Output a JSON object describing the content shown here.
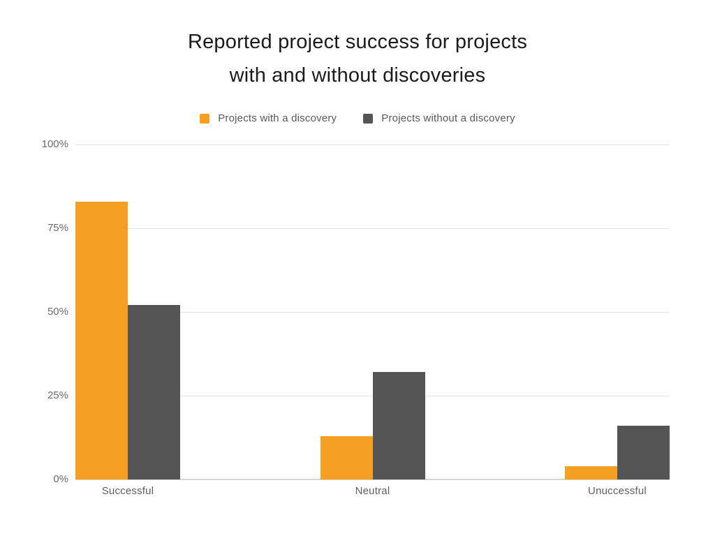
{
  "title": {
    "line1": "Reported project success for projects",
    "line2": "with and without discoveries"
  },
  "legend": {
    "items": [
      {
        "label": "Projects with a discovery",
        "color": "#f5a023"
      },
      {
        "label": "Projects without a discovery",
        "color": "#555555"
      }
    ]
  },
  "colors": {
    "with_discovery": "#f5a023",
    "without_discovery": "#555555",
    "gridline": "#e3e3e3",
    "baseline": "#d5d5d5"
  },
  "chart_data": {
    "type": "bar",
    "title": "Reported project success for projects with and without discoveries",
    "categories": [
      "Successful",
      "Neutral",
      "Unuccessful"
    ],
    "series": [
      {
        "name": "Projects with a discovery",
        "color": "#f5a023",
        "values": [
          83,
          13,
          4
        ]
      },
      {
        "name": "Projects without a discovery",
        "color": "#555555",
        "values": [
          52,
          32,
          16
        ]
      }
    ],
    "xlabel": "",
    "ylabel": "",
    "ylim": [
      0,
      100
    ],
    "y_ticks": [
      "100%",
      "75%",
      "50%",
      "25%",
      "0%"
    ],
    "y_tick_values": [
      100,
      75,
      50,
      25,
      0
    ],
    "grid": true,
    "legend_position": "top"
  }
}
